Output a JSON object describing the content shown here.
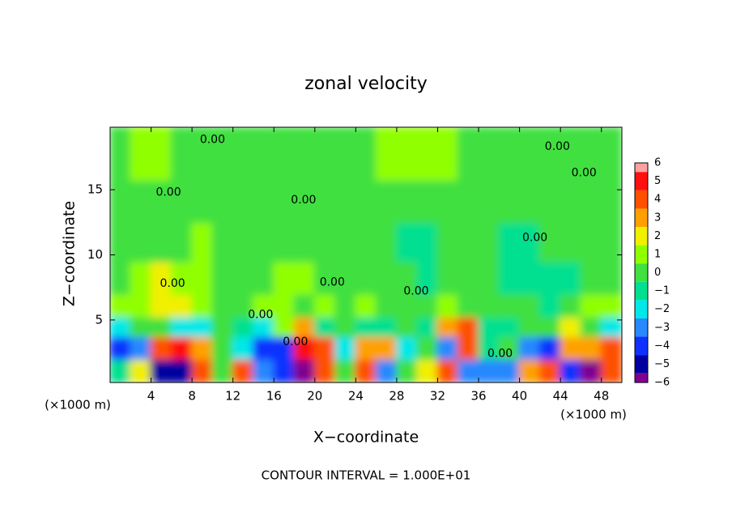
{
  "chart_data": {
    "type": "contour",
    "title": "zonal velocity",
    "xlabel": "X−coordinate",
    "ylabel": "Z−coordinate",
    "x_unit_left": "(×1000 m)",
    "x_unit_right": "(×1000 m)",
    "footer": "CONTOUR INTERVAL = 1.000E+01",
    "xlim": [
      0,
      50
    ],
    "ylim": [
      0.2,
      19.8
    ],
    "xticks": [
      4,
      8,
      12,
      16,
      20,
      24,
      28,
      32,
      36,
      40,
      44,
      48
    ],
    "yticks": [
      5,
      10,
      15
    ],
    "x": [
      1,
      3,
      5,
      7,
      9,
      11,
      13,
      15,
      17,
      19,
      21,
      23,
      25,
      27,
      29,
      31,
      33,
      35,
      37,
      39,
      41,
      43,
      45,
      47,
      49
    ],
    "z": [
      1,
      3,
      4.5,
      6,
      8,
      11,
      14,
      17.5
    ],
    "values": [
      [
        -1,
        2,
        -5,
        -5,
        4,
        0,
        4,
        -3,
        -4,
        -6,
        4,
        0,
        4,
        -3,
        0,
        2,
        4,
        -3,
        -3,
        -3,
        3,
        4,
        -4,
        -6,
        4
      ],
      [
        -4,
        -3,
        4,
        5,
        3,
        0,
        -2,
        -4,
        -4,
        5,
        4,
        -2,
        3,
        3,
        -2,
        0,
        -3,
        4,
        -1,
        0,
        -3,
        -4,
        3,
        3,
        4
      ],
      [
        -2,
        0,
        0,
        -2,
        -2,
        0,
        -1,
        -2,
        1,
        3,
        -1,
        0,
        -1,
        -1,
        0,
        -1,
        3,
        4,
        -1,
        -1,
        0,
        0,
        2,
        0,
        -2
      ],
      [
        1,
        1,
        2,
        2,
        1,
        0,
        0,
        1,
        1,
        0,
        1,
        0,
        1,
        0,
        0,
        0,
        1,
        0,
        0,
        0,
        0,
        -1,
        0,
        1,
        1
      ],
      [
        0,
        1,
        2,
        1,
        1,
        0,
        0,
        0,
        1,
        1,
        0,
        0,
        0,
        0,
        0,
        -1,
        0,
        0,
        0,
        -1,
        -1,
        -1,
        -1,
        0,
        0
      ],
      [
        0,
        0,
        0,
        0,
        1,
        0,
        0,
        0,
        0,
        0,
        0,
        0,
        0,
        0,
        -1,
        -1,
        0,
        0,
        0,
        -1,
        -1,
        0,
        0,
        0,
        0
      ],
      [
        0,
        0,
        0,
        0,
        0,
        0,
        0,
        0,
        0,
        0,
        0,
        0,
        0,
        0,
        0,
        0,
        0,
        0,
        0,
        0,
        0,
        0,
        0,
        0,
        0
      ],
      [
        0,
        1,
        1,
        0,
        0,
        0,
        0,
        0,
        0,
        0,
        0,
        0,
        0,
        1,
        1,
        1,
        1,
        0,
        0,
        0,
        0,
        0,
        0,
        0,
        0
      ]
    ],
    "colorbar_ticks": [
      6,
      5,
      4,
      3,
      2,
      1,
      0,
      {
        "value": -1,
        "label": "−1"
      },
      {
        "value": -2,
        "label": "−2"
      },
      {
        "value": -3,
        "label": "−3"
      },
      {
        "value": -4,
        "label": "−4"
      },
      {
        "value": -5,
        "label": "−5"
      },
      {
        "value": -6,
        "label": "−6"
      }
    ],
    "colorbar_colors": [
      "#ffa0a0",
      "#ff1010",
      "#ff5000",
      "#ffa000",
      "#f0f000",
      "#90ff00",
      "#40e040",
      "#00e090",
      "#00e8e8",
      "#2888ff",
      "#1030ff",
      "#0000a0",
      "#800090"
    ],
    "contour_labels": [
      {
        "text": "0.00",
        "x": 10,
        "z": 18.85
      },
      {
        "text": "0.00",
        "x": 5.7,
        "z": 14.8
      },
      {
        "text": "0.00",
        "x": 18.9,
        "z": 14.2
      },
      {
        "text": "0.00",
        "x": 43.7,
        "z": 18.3
      },
      {
        "text": "0.00",
        "x": 46.3,
        "z": 16.3
      },
      {
        "text": "0.00",
        "x": 41.5,
        "z": 11.3
      },
      {
        "text": "0.00",
        "x": 6.1,
        "z": 7.8
      },
      {
        "text": "0.00",
        "x": 21.7,
        "z": 7.9
      },
      {
        "text": "0.00",
        "x": 29.9,
        "z": 7.2
      },
      {
        "text": "0.00",
        "x": 14.7,
        "z": 5.4
      },
      {
        "text": "0.00",
        "x": 18.1,
        "z": 3.3
      },
      {
        "text": "0.00",
        "x": 38.1,
        "z": 2.4
      }
    ]
  }
}
